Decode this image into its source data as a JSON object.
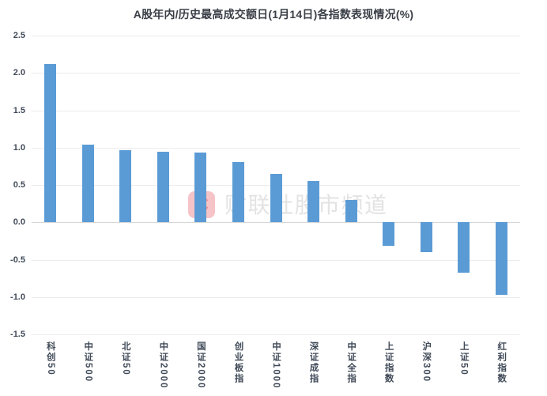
{
  "watermark": {
    "logo_letter": "C",
    "text": "财联社股市频道"
  },
  "colors": {
    "bar": "#5B9BD5",
    "gridline": "#ececec",
    "zero_line": "#d7d7d7",
    "axis_label": "#404a58",
    "title": "#3a3f47",
    "watermark_text": "#e3e3e3",
    "watermark_logo": "#ec8d95",
    "watermark_logo_bg": "#f6c3c7"
  },
  "chart_data": {
    "type": "bar",
    "title": "A股年内/历史最高成交额日(1月14日)各指数表现情况(%)",
    "categories": [
      "科创50",
      "中证500",
      "北证50",
      "中证2000",
      "国证2000",
      "创业板指",
      "中证1000",
      "深证成指",
      "中证全指",
      "上证指数",
      "沪深300",
      "上证50",
      "红利指数"
    ],
    "values": [
      2.12,
      1.04,
      0.97,
      0.95,
      0.93,
      0.81,
      0.65,
      0.55,
      0.3,
      -0.31,
      -0.4,
      -0.67,
      -0.97
    ],
    "xlabel": "",
    "ylabel": "",
    "ylim": [
      -1.5,
      2.5
    ],
    "yticks": [
      2.5,
      2.0,
      1.5,
      1.0,
      0.5,
      0.0,
      -0.5,
      -1.0,
      -1.5
    ],
    "grid": true,
    "legend_position": "none",
    "bar_color": "#5B9BD5"
  }
}
